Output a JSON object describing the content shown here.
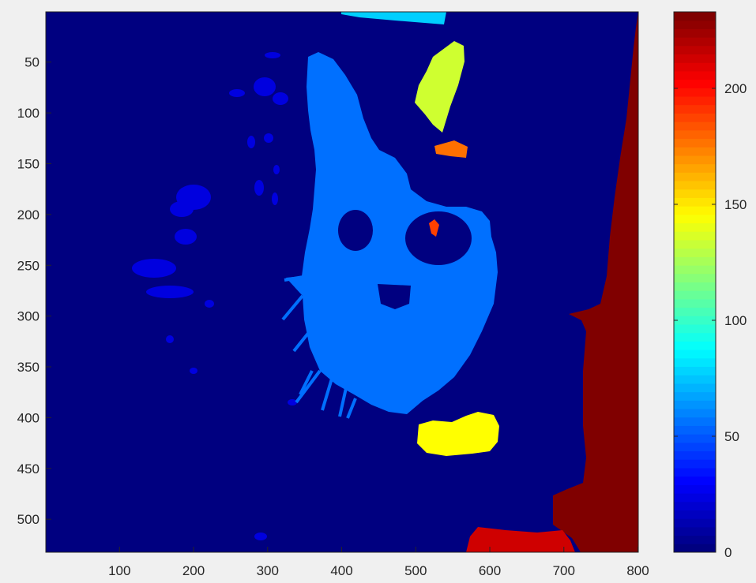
{
  "chart_data": {
    "type": "heatmap",
    "title": "",
    "xlabel": "",
    "ylabel": "",
    "x_axis": {
      "ticks": [
        100,
        200,
        300,
        400,
        500,
        600,
        700,
        800
      ],
      "range": [
        1,
        800
      ]
    },
    "y_axis": {
      "ticks": [
        50,
        100,
        150,
        200,
        250,
        300,
        350,
        400,
        450,
        500
      ],
      "range": [
        1,
        532
      ],
      "direction": "reverse"
    },
    "colorbar": {
      "colormap": "jet",
      "range": [
        0,
        233
      ],
      "ticks": [
        0,
        50,
        100,
        150,
        200
      ],
      "placement": "right"
    },
    "regions": [
      {
        "name": "background",
        "value": 2
      },
      {
        "name": "cat-face",
        "value": 58
      },
      {
        "name": "left-ear-tufts",
        "value": 138
      },
      {
        "name": "collar-tag",
        "value": 148
      },
      {
        "name": "ear-highlight",
        "value": 180
      },
      {
        "name": "eye-highlight",
        "value": 190
      },
      {
        "name": "right-edge-band",
        "value": 233
      },
      {
        "name": "bottom-red-patch",
        "value": 218
      },
      {
        "name": "top-cyan-strip",
        "value": 78
      },
      {
        "name": "faint-blue-specks",
        "value": 22
      }
    ],
    "grid": false
  },
  "colors": {
    "figure_bg": "#f0f0f0",
    "axes_frame": "#262626"
  }
}
